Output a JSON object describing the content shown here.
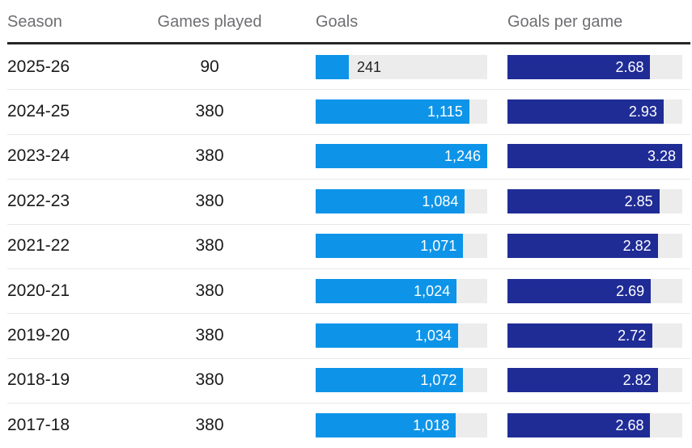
{
  "table": {
    "headers": [
      {
        "label": "Season"
      },
      {
        "label": "Games played"
      },
      {
        "label": "Goals"
      },
      {
        "label": "Goals per game"
      }
    ],
    "rows": [
      {
        "season": "2025-26",
        "games": "90",
        "goals": 241,
        "goals_label": "241",
        "gpg": 2.68,
        "gpg_label": "2.68"
      },
      {
        "season": "2024-25",
        "games": "380",
        "goals": 1115,
        "goals_label": "1,115",
        "gpg": 2.93,
        "gpg_label": "2.93"
      },
      {
        "season": "2023-24",
        "games": "380",
        "goals": 1246,
        "goals_label": "1,246",
        "gpg": 3.28,
        "gpg_label": "3.28"
      },
      {
        "season": "2022-23",
        "games": "380",
        "goals": 1084,
        "goals_label": "1,084",
        "gpg": 2.85,
        "gpg_label": "2.85"
      },
      {
        "season": "2021-22",
        "games": "380",
        "goals": 1071,
        "goals_label": "1,071",
        "gpg": 2.82,
        "gpg_label": "2.82"
      },
      {
        "season": "2020-21",
        "games": "380",
        "goals": 1024,
        "goals_label": "1,024",
        "gpg": 2.69,
        "gpg_label": "2.69"
      },
      {
        "season": "2019-20",
        "games": "380",
        "goals": 1034,
        "goals_label": "1,034",
        "gpg": 2.72,
        "gpg_label": "2.72"
      },
      {
        "season": "2018-19",
        "games": "380",
        "goals": 1072,
        "goals_label": "1,072",
        "gpg": 2.82,
        "gpg_label": "2.82"
      },
      {
        "season": "2017-18",
        "games": "380",
        "goals": 1018,
        "goals_label": "1,018",
        "gpg": 2.68,
        "gpg_label": "2.68"
      }
    ],
    "goals_max": 1246,
    "gpg_max": 3.28
  },
  "colors": {
    "goals_bar": "#0d94e8",
    "gpg_bar": "#1f2c96",
    "bar_track": "#ececec",
    "header_text": "#6f6f73",
    "body_text": "#1a1a1a",
    "header_rule": "#262626",
    "row_divider": "#e8e8e8"
  },
  "chart_data": {
    "type": "table",
    "title": "",
    "columns": [
      "Season",
      "Games played",
      "Goals",
      "Goals per game"
    ],
    "rows": [
      [
        "2025-26",
        90,
        241,
        2.68
      ],
      [
        "2024-25",
        380,
        1115,
        2.93
      ],
      [
        "2023-24",
        380,
        1246,
        3.28
      ],
      [
        "2022-23",
        380,
        1084,
        2.85
      ],
      [
        "2021-22",
        380,
        1071,
        2.82
      ],
      [
        "2020-21",
        380,
        1024,
        2.69
      ],
      [
        "2019-20",
        380,
        1034,
        2.72
      ],
      [
        "2018-19",
        380,
        1072,
        2.82
      ],
      [
        "2017-18",
        380,
        1018,
        2.68
      ]
    ],
    "embedded_bar_columns": [
      {
        "column": "Goals",
        "type": "bar",
        "range": [
          0,
          1246
        ],
        "color": "#0d94e8",
        "value_labels": "inside-right, white (outside-right dark when bar too short)"
      },
      {
        "column": "Goals per game",
        "type": "bar",
        "range": [
          0,
          3.28
        ],
        "color": "#1f2c96",
        "value_labels": "inside-right, white"
      }
    ],
    "legend": "none",
    "grid": "off"
  }
}
